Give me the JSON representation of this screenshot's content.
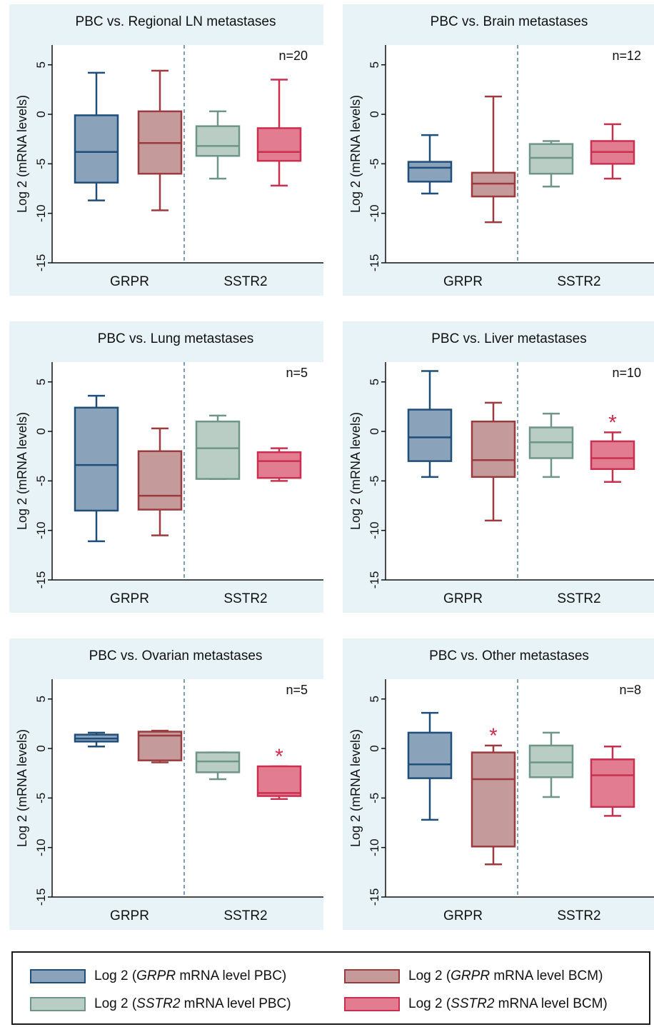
{
  "colors": {
    "panel_bg": "#e8f3f7",
    "grpr_pbc": {
      "fill": "#8aa3bb",
      "stroke": "#1f4e79"
    },
    "grpr_bcm": {
      "fill": "#c49a9a",
      "stroke": "#9c3b3f"
    },
    "sstr2_pbc": {
      "fill": "#b9cdc4",
      "stroke": "#6f9488"
    },
    "sstr2_bcm": {
      "fill": "#e27c91",
      "stroke": "#c9304f"
    },
    "star": "#c9304f",
    "divider": "#7f9db6"
  },
  "legend": {
    "grpr_pbc": {
      "pre": "Log 2 (",
      "gene": "GRPR",
      "post": " mRNA level PBC)"
    },
    "grpr_bcm": {
      "pre": "Log 2 (",
      "gene": "GRPR",
      "post": " mRNA level BCM)"
    },
    "sstr2_pbc": {
      "pre": "Log 2 (",
      "gene": "SSTR2",
      "post": " mRNA level PBC)"
    },
    "sstr2_bcm": {
      "pre": "Log 2 (",
      "gene": "SSTR2",
      "post": " mRNA level BCM)"
    }
  },
  "chart_data": [
    {
      "type": "box",
      "title": "PBC vs. Regional LN metastases",
      "ylabel": "Log 2 (mRNA levels)",
      "n_label": "n=20",
      "ylim": [
        -15,
        7
      ],
      "yticks": [
        5,
        0,
        -5,
        -10,
        -15
      ],
      "ytick_labels": [
        "5",
        "0",
        "-5",
        "-10",
        "-15"
      ],
      "categories": [
        "GRPR",
        "SSTR2"
      ],
      "boxes": [
        {
          "series": "grpr_pbc",
          "min": -8.7,
          "q1": -6.9,
          "median": -3.8,
          "q3": -0.1,
          "max": 4.2
        },
        {
          "series": "grpr_bcm",
          "min": -9.7,
          "q1": -6.0,
          "median": -2.9,
          "q3": 0.3,
          "max": 4.4
        },
        {
          "series": "sstr2_pbc",
          "min": -6.5,
          "q1": -4.2,
          "median": -3.2,
          "q3": -1.2,
          "max": 0.3
        },
        {
          "series": "sstr2_bcm",
          "min": -7.2,
          "q1": -4.7,
          "median": -3.8,
          "q3": -1.4,
          "max": 3.5
        }
      ],
      "significant": []
    },
    {
      "type": "box",
      "title": "PBC vs. Brain metastases",
      "ylabel": "Log 2 (mRNA levels)",
      "n_label": "n=12",
      "ylim": [
        -15,
        7
      ],
      "yticks": [
        5,
        0,
        -5,
        -10,
        -15
      ],
      "ytick_labels": [
        "5",
        "0",
        "-5",
        "-10",
        "-15"
      ],
      "categories": [
        "GRPR",
        "SSTR2"
      ],
      "boxes": [
        {
          "series": "grpr_pbc",
          "min": -8.0,
          "q1": -6.8,
          "median": -5.4,
          "q3": -4.8,
          "max": -2.1
        },
        {
          "series": "grpr_bcm",
          "min": -10.9,
          "q1": -8.3,
          "median": -7.0,
          "q3": -5.9,
          "max": 1.8
        },
        {
          "series": "sstr2_pbc",
          "min": -7.3,
          "q1": -6.0,
          "median": -4.4,
          "q3": -3.0,
          "max": -2.7
        },
        {
          "series": "sstr2_bcm",
          "min": -6.5,
          "q1": -5.0,
          "median": -3.8,
          "q3": -2.7,
          "max": -1.0
        }
      ],
      "significant": []
    },
    {
      "type": "box",
      "title": "PBC vs. Lung metastases",
      "ylabel": "Log 2 (mRNA levels)",
      "n_label": "n=5",
      "ylim": [
        -15,
        7
      ],
      "yticks": [
        5,
        0,
        -5,
        -10,
        -15
      ],
      "ytick_labels": [
        "5",
        "0",
        "-5",
        "-10",
        "-15"
      ],
      "categories": [
        "GRPR",
        "SSTR2"
      ],
      "boxes": [
        {
          "series": "grpr_pbc",
          "min": -11.1,
          "q1": -8.0,
          "median": -3.4,
          "q3": 2.4,
          "max": 3.6
        },
        {
          "series": "grpr_bcm",
          "min": -10.5,
          "q1": -7.9,
          "median": -6.5,
          "q3": -2.0,
          "max": 0.3
        },
        {
          "series": "sstr2_pbc",
          "min": -4.8,
          "q1": -4.8,
          "median": -1.7,
          "q3": 1.0,
          "max": 1.6
        },
        {
          "series": "sstr2_bcm",
          "min": -5.0,
          "q1": -4.7,
          "median": -3.0,
          "q3": -2.1,
          "max": -1.7
        }
      ],
      "significant": []
    },
    {
      "type": "box",
      "title": "PBC vs. Liver metastases",
      "ylabel": "Log 2 (mRNA levels)",
      "n_label": "n=10",
      "ylim": [
        -15,
        7
      ],
      "yticks": [
        5,
        0,
        -5,
        -10,
        -15
      ],
      "ytick_labels": [
        "5",
        "0",
        "-5",
        "-10",
        "-15"
      ],
      "categories": [
        "GRPR",
        "SSTR2"
      ],
      "boxes": [
        {
          "series": "grpr_pbc",
          "min": -4.6,
          "q1": -3.0,
          "median": -0.6,
          "q3": 2.2,
          "max": 6.1
        },
        {
          "series": "grpr_bcm",
          "min": -9.0,
          "q1": -4.6,
          "median": -2.9,
          "q3": 1.0,
          "max": 2.9
        },
        {
          "series": "sstr2_pbc",
          "min": -4.6,
          "q1": -2.7,
          "median": -1.1,
          "q3": 0.4,
          "max": 1.8
        },
        {
          "series": "sstr2_bcm",
          "min": -5.1,
          "q1": -3.8,
          "median": -2.7,
          "q3": -1.0,
          "max": -0.1
        }
      ],
      "significant": [
        "sstr2_bcm"
      ]
    },
    {
      "type": "box",
      "title": "PBC vs. Ovarian metastases",
      "ylabel": "Log 2 (mRNA levels)",
      "n_label": "n=5",
      "ylim": [
        -15,
        7
      ],
      "yticks": [
        5,
        0,
        -5,
        -10,
        -15
      ],
      "ytick_labels": [
        "5",
        "0",
        "-5",
        "-10",
        "-15"
      ],
      "categories": [
        "GRPR",
        "SSTR2"
      ],
      "boxes": [
        {
          "series": "grpr_pbc",
          "min": 0.2,
          "q1": 0.7,
          "median": 1.0,
          "q3": 1.4,
          "max": 1.6
        },
        {
          "series": "grpr_bcm",
          "min": -1.4,
          "q1": -1.2,
          "median": 1.3,
          "q3": 1.7,
          "max": 1.8
        },
        {
          "series": "sstr2_pbc",
          "min": -3.1,
          "q1": -2.4,
          "median": -1.3,
          "q3": -0.4,
          "max": -0.4
        },
        {
          "series": "sstr2_bcm",
          "min": -5.1,
          "q1": -4.8,
          "median": -4.5,
          "q3": -1.8,
          "max": -1.8
        }
      ],
      "significant": [
        "sstr2_bcm"
      ]
    },
    {
      "type": "box",
      "title": "PBC vs. Other metastases",
      "ylabel": "Log 2 (mRNA levels)",
      "n_label": "n=8",
      "ylim": [
        -15,
        7
      ],
      "yticks": [
        5,
        0,
        -5,
        -10,
        -15
      ],
      "ytick_labels": [
        "5",
        "0",
        "-5",
        "-10",
        "-15"
      ],
      "categories": [
        "GRPR",
        "SSTR2"
      ],
      "boxes": [
        {
          "series": "grpr_pbc",
          "min": -7.2,
          "q1": -3.0,
          "median": -1.6,
          "q3": 1.6,
          "max": 3.6
        },
        {
          "series": "grpr_bcm",
          "min": -11.7,
          "q1": -9.9,
          "median": -3.1,
          "q3": -0.4,
          "max": 0.3
        },
        {
          "series": "sstr2_pbc",
          "min": -4.9,
          "q1": -2.9,
          "median": -1.4,
          "q3": 0.3,
          "max": 1.6
        },
        {
          "series": "sstr2_bcm",
          "min": -6.8,
          "q1": -5.9,
          "median": -2.7,
          "q3": -1.1,
          "max": 0.2
        }
      ],
      "significant": [
        "grpr_bcm"
      ]
    }
  ]
}
